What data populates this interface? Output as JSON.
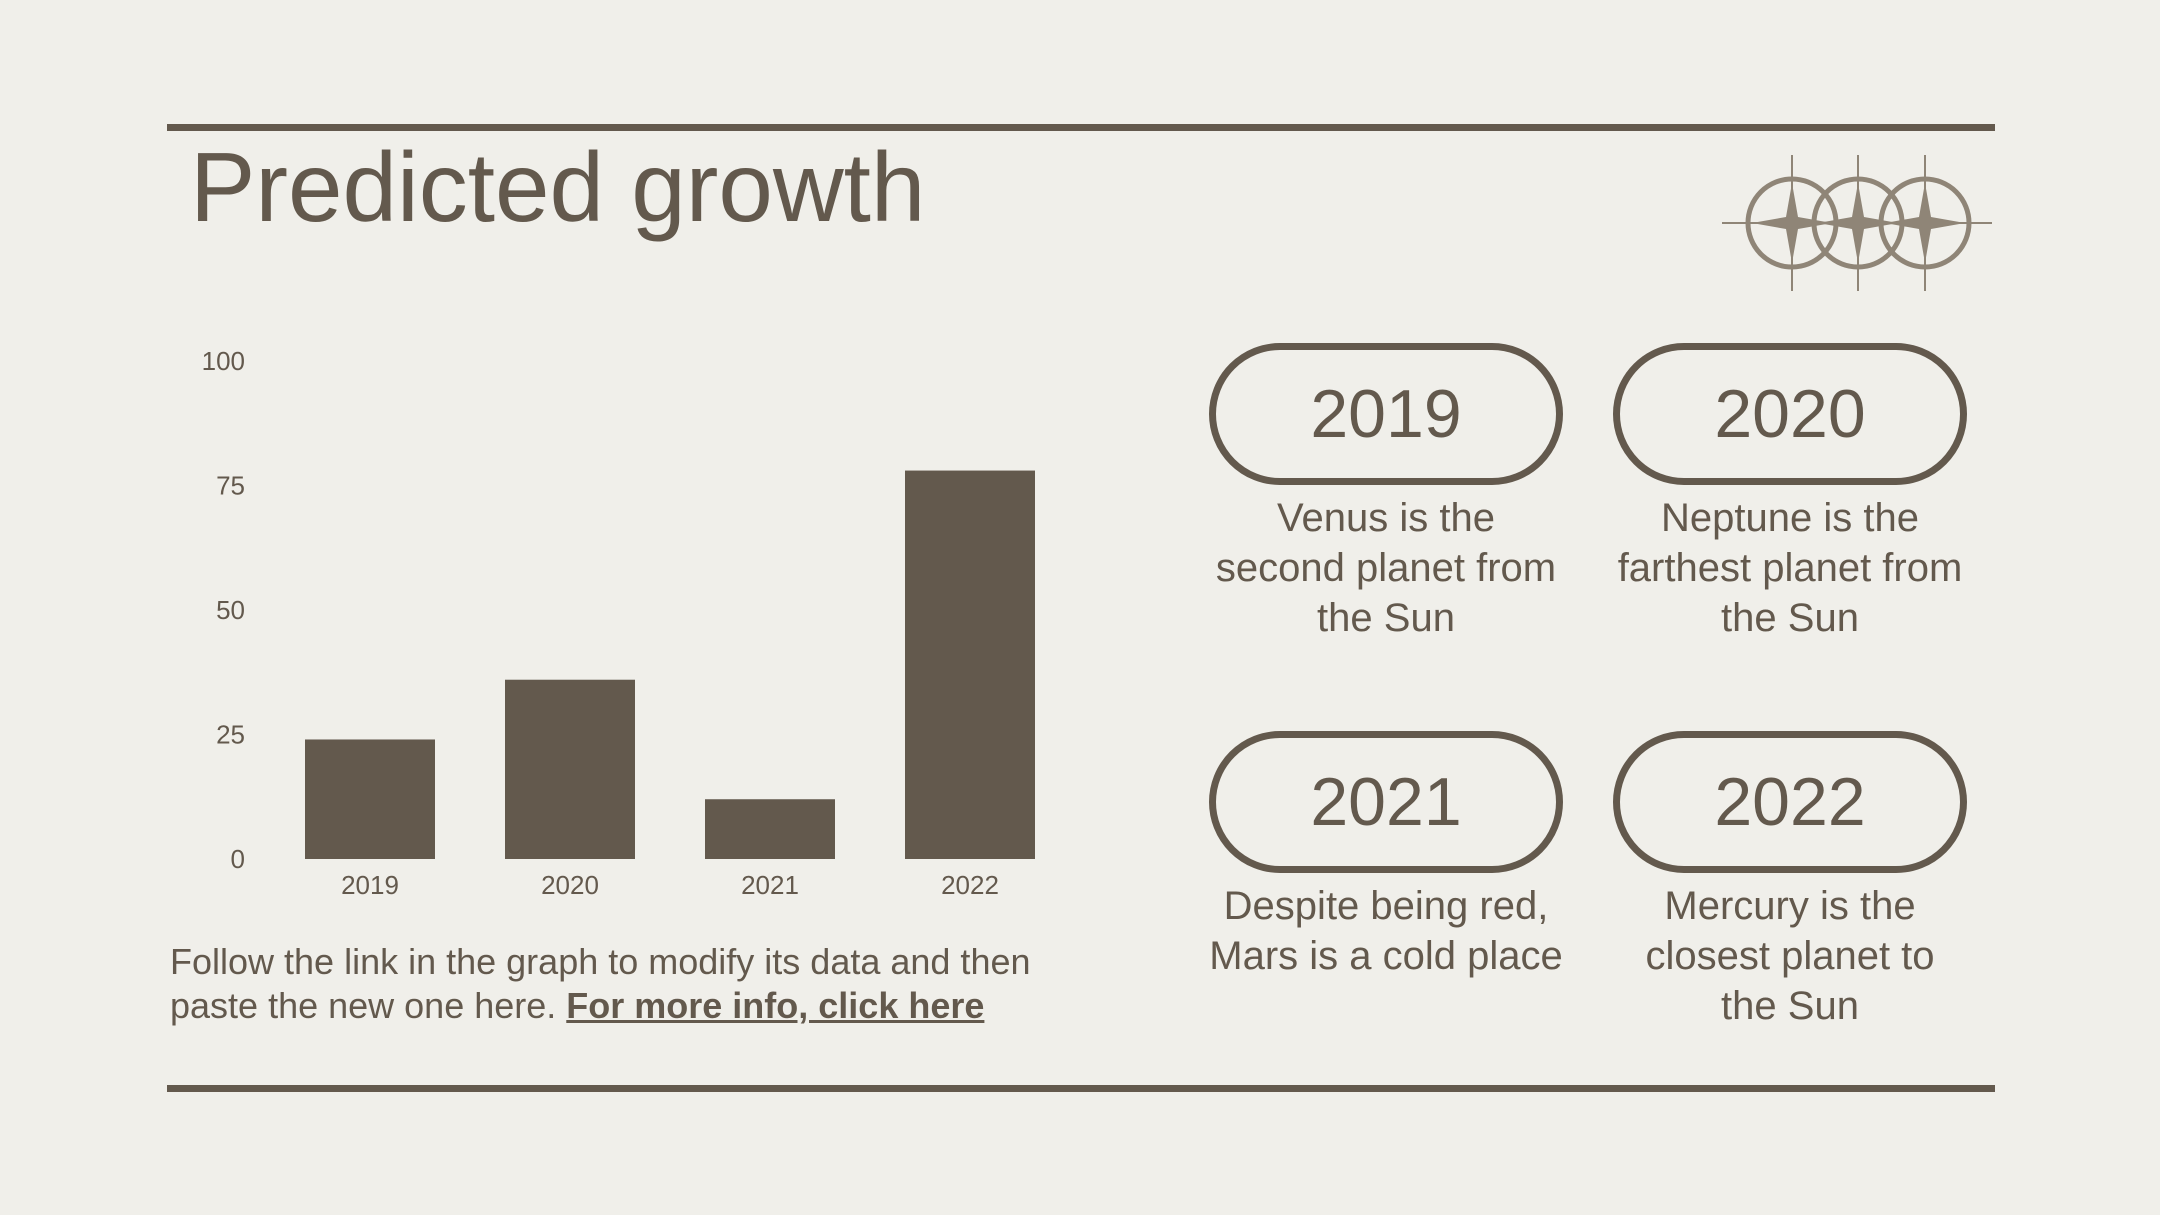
{
  "page": {
    "title": "Predicted growth",
    "caption_text": "Follow the link in the graph to modify its data and then paste the new one here. ",
    "caption_link": "For more info, click here"
  },
  "cards": [
    {
      "year": "2019",
      "text": "Venus is the second planet from the Sun"
    },
    {
      "year": "2020",
      "text": "Neptune is the farthest planet from the Sun"
    },
    {
      "year": "2021",
      "text": "Despite being red, Mars is a cold place"
    },
    {
      "year": "2022",
      "text": "Mercury is the closest planet to the Sun"
    }
  ],
  "colors": {
    "background": "#f0efea",
    "ink": "#63594d",
    "ornament": "#8f8577"
  },
  "icons": {
    "ornament": "three-star-circle-icon"
  },
  "chart_data": {
    "type": "bar",
    "categories": [
      "2019",
      "2020",
      "2021",
      "2022"
    ],
    "values": [
      24,
      36,
      12,
      78
    ],
    "title": "",
    "xlabel": "",
    "ylabel": "",
    "ylim": [
      0,
      100
    ],
    "yticks": [
      "0",
      "25",
      "50",
      "75",
      "100"
    ],
    "grid": false,
    "legend": "none"
  }
}
